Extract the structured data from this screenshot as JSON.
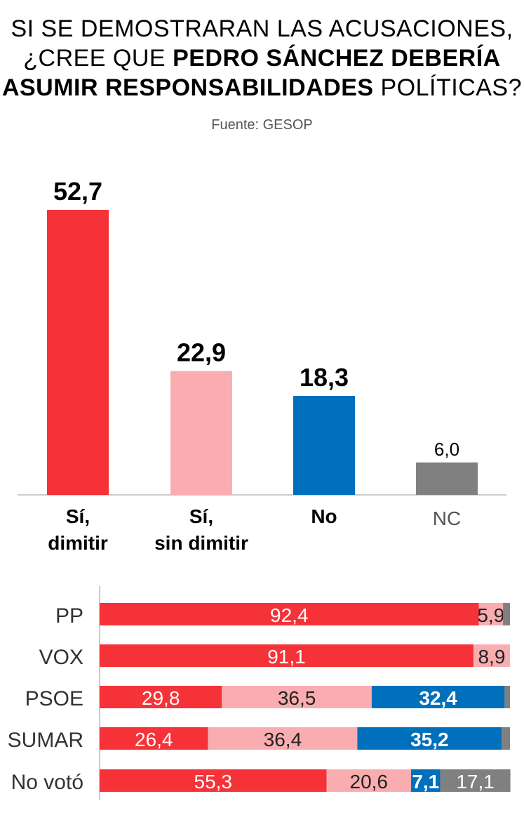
{
  "title": {
    "line1": "SI SE DEMOSTRARAN LAS ACUSACIONES,",
    "line2_plain": "¿CREE QUE ",
    "line2_bold": "PEDRO SÁNCHEZ DEBERÍA",
    "line3_bold": "ASUMIR RESPONSABILIDADES",
    "line3_plain": " POLÍTICAS?"
  },
  "source": "Fuente: GESOP",
  "colors": {
    "si_dimitir": "#f53238",
    "si_sin_dimitir": "#faadb0",
    "no": "#0070bc",
    "nc": "#808080"
  },
  "chart_data": [
    {
      "type": "bar",
      "categories": [
        "Sí,\ndimitir",
        "Sí,\nsin dimitir",
        "No",
        "NC"
      ],
      "values": [
        52.7,
        22.9,
        18.3,
        6.0
      ],
      "value_labels": [
        "52,7",
        "22,9",
        "18,3",
        "6,0"
      ],
      "colors": [
        "#f53238",
        "#faadb0",
        "#0070bc",
        "#808080"
      ],
      "ylim": [
        0,
        52.7
      ],
      "grid": false
    },
    {
      "type": "bar",
      "orientation": "horizontal-stacked",
      "categories": [
        "PP",
        "VOX",
        "PSOE",
        "SUMAR",
        "No votó"
      ],
      "series": [
        {
          "key": "si_dimitir",
          "color": "#f53238",
          "values": [
            92.4,
            91.1,
            29.8,
            26.4,
            55.3
          ],
          "labels": [
            "92,4",
            "91,1",
            "29,8",
            "26,4",
            "55,3"
          ]
        },
        {
          "key": "si_sin_dimitir",
          "color": "#faadb0",
          "values": [
            5.9,
            8.9,
            36.5,
            36.4,
            20.6
          ],
          "labels": [
            "5,9",
            "8,9",
            "36,5",
            "36,4",
            "20,6"
          ]
        },
        {
          "key": "no",
          "color": "#0070bc",
          "values": [
            0,
            0,
            32.4,
            35.2,
            7.1
          ],
          "labels": [
            "",
            "",
            "32,4",
            "35,2",
            "7,1"
          ]
        },
        {
          "key": "nc",
          "color": "#808080",
          "values": [
            1.7,
            0,
            1.3,
            2.0,
            17.1
          ],
          "labels": [
            "",
            "",
            "",
            "",
            "17,1"
          ]
        }
      ],
      "xlim": [
        0,
        100
      ]
    }
  ]
}
